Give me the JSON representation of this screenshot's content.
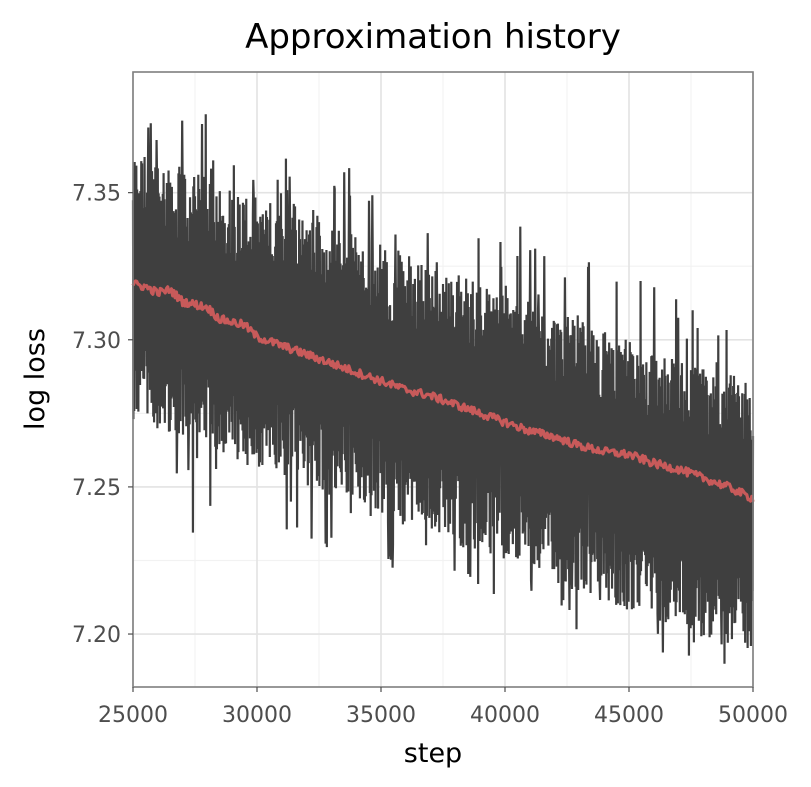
{
  "chart_data": {
    "type": "line",
    "title": "Approximation history",
    "xlabel": "step",
    "ylabel": "log loss",
    "xlim": [
      25000,
      50000
    ],
    "ylim": [
      7.182,
      7.391
    ],
    "x_ticks": [
      25000,
      30000,
      35000,
      40000,
      45000,
      50000
    ],
    "x_tick_labels": [
      "25000",
      "30000",
      "35000",
      "40000",
      "45000",
      "50000"
    ],
    "y_ticks": [
      7.2,
      7.25,
      7.3,
      7.35
    ],
    "y_tick_labels": [
      "7.20",
      "7.25",
      "7.30",
      "7.35"
    ],
    "grid": true,
    "legend": "none",
    "series": [
      {
        "color": "#3f3f3f",
        "kind": "raw",
        "envelope": {
          "x": [
            25000,
            27500,
            30000,
            32500,
            35000,
            37500,
            40000,
            42500,
            45000,
            47500,
            50000
          ],
          "upper": [
            7.365,
            7.357,
            7.349,
            7.341,
            7.333,
            7.325,
            7.316,
            7.308,
            7.3,
            7.292,
            7.286
          ],
          "lower": [
            7.273,
            7.265,
            7.256,
            7.248,
            7.24,
            7.232,
            7.224,
            7.216,
            7.208,
            7.2,
            7.194
          ],
          "max_spike": [
            7.378,
            7.384,
            7.364,
            7.362,
            7.358,
            7.356,
            7.344,
            7.336,
            7.324,
            7.321,
            7.314
          ],
          "min_spike": [
            7.24,
            7.234,
            7.24,
            7.226,
            7.222,
            7.22,
            7.212,
            7.202,
            7.196,
            7.19,
            7.185
          ]
        }
      },
      {
        "color": "#c85a5a",
        "kind": "smoothed",
        "x": [
          25000,
          25500,
          26000,
          26500,
          27000,
          27500,
          28000,
          28500,
          29000,
          29500,
          30000,
          31000,
          32000,
          33000,
          34000,
          35000,
          36000,
          37000,
          38000,
          39000,
          40000,
          41000,
          42000,
          43000,
          44000,
          45000,
          46000,
          47000,
          48000,
          49000,
          50000
        ],
        "y": [
          7.319,
          7.318,
          7.316,
          7.317,
          7.313,
          7.312,
          7.311,
          7.307,
          7.306,
          7.305,
          7.301,
          7.298,
          7.295,
          7.292,
          7.289,
          7.286,
          7.283,
          7.281,
          7.278,
          7.275,
          7.272,
          7.269,
          7.267,
          7.264,
          7.262,
          7.261,
          7.258,
          7.256,
          7.253,
          7.25,
          7.246
        ]
      }
    ]
  }
}
